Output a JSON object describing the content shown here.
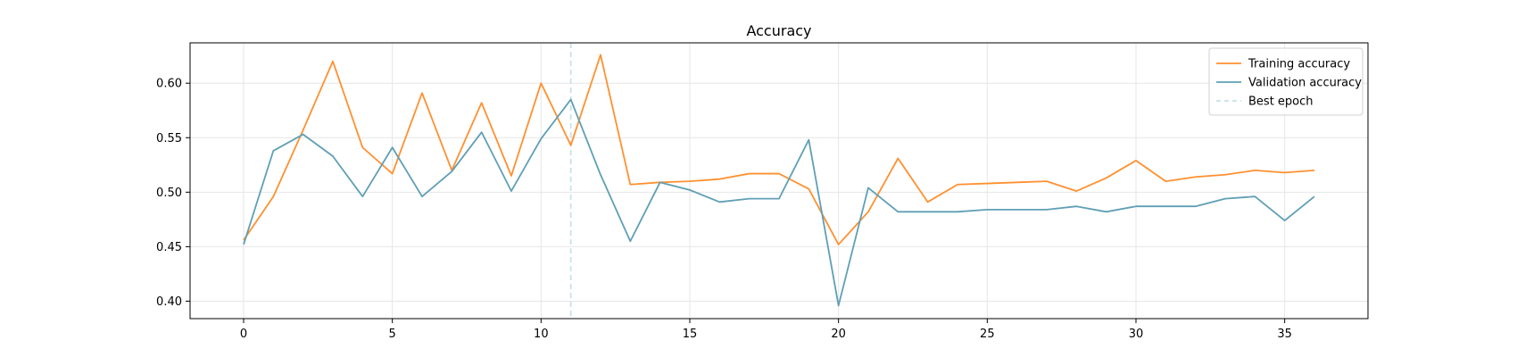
{
  "chart_data": {
    "type": "line",
    "title": "Accuracy",
    "xlabel": "",
    "ylabel": "",
    "xlim": [
      -1.8,
      37.8
    ],
    "ylim": [
      0.384,
      0.637
    ],
    "xticks": [
      0,
      5,
      10,
      15,
      20,
      25,
      30,
      35
    ],
    "yticks": [
      0.4,
      0.45,
      0.5,
      0.55,
      0.6
    ],
    "grid": true,
    "legend_position": "top-right",
    "series": [
      {
        "name": "Training accuracy",
        "color": "#ff9030",
        "style": "solid",
        "x": [
          0,
          1,
          2,
          3,
          4,
          5,
          6,
          7,
          8,
          9,
          10,
          11,
          12,
          13,
          14,
          15,
          16,
          17,
          18,
          19,
          20,
          21,
          22,
          23,
          24,
          25,
          26,
          27,
          28,
          29,
          30,
          31,
          32,
          33,
          34,
          35,
          36
        ],
        "values": [
          0.456,
          0.496,
          0.557,
          0.62,
          0.541,
          0.517,
          0.591,
          0.52,
          0.582,
          0.515,
          0.6,
          0.543,
          0.626,
          0.507,
          0.509,
          0.51,
          0.512,
          0.517,
          0.517,
          0.503,
          0.452,
          0.482,
          0.531,
          0.491,
          0.507,
          0.508,
          0.509,
          0.51,
          0.501,
          0.513,
          0.529,
          0.51,
          0.514,
          0.516,
          0.52,
          0.518,
          0.52
        ]
      },
      {
        "name": "Validation accuracy",
        "color": "#5f9fb5",
        "style": "solid",
        "x": [
          0,
          1,
          2,
          3,
          4,
          5,
          6,
          7,
          8,
          9,
          10,
          11,
          12,
          13,
          14,
          15,
          16,
          17,
          18,
          19,
          20,
          21,
          22,
          23,
          24,
          25,
          26,
          27,
          28,
          29,
          30,
          31,
          32,
          33,
          34,
          35,
          36
        ],
        "values": [
          0.452,
          0.538,
          0.553,
          0.533,
          0.496,
          0.541,
          0.496,
          0.519,
          0.555,
          0.501,
          0.549,
          0.585,
          0.516,
          0.455,
          0.509,
          0.502,
          0.491,
          0.494,
          0.494,
          0.548,
          0.396,
          0.504,
          0.482,
          0.482,
          0.482,
          0.484,
          0.484,
          0.484,
          0.487,
          0.482,
          0.487,
          0.487,
          0.487,
          0.494,
          0.496,
          0.474,
          0.496
        ]
      },
      {
        "name": "Best epoch",
        "color": "#c9e0e8",
        "style": "dashed",
        "type": "vline",
        "x_value": 11
      }
    ]
  }
}
